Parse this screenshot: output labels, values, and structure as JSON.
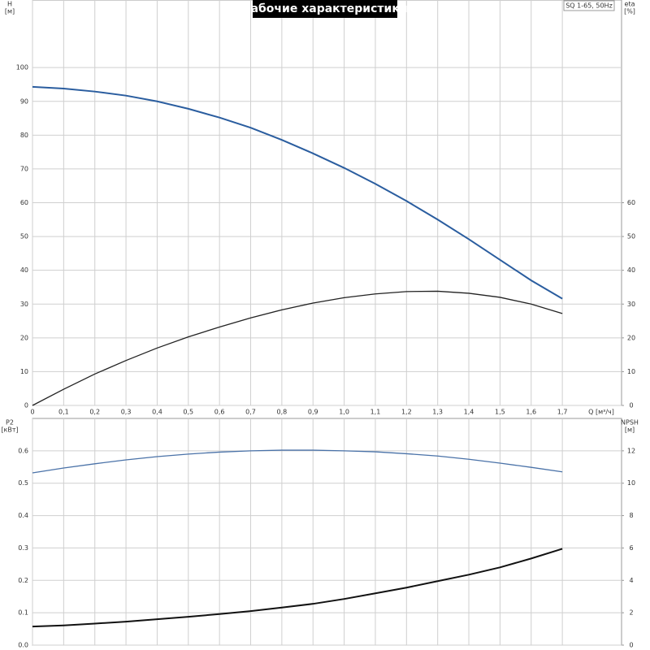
{
  "chart_data": [
    {
      "type": "line",
      "title": "Рабочие характеристики",
      "annotation": "SQ 1-65, 50Hz",
      "y_label": "H",
      "y_unit": "[м]",
      "y2_label": "eta",
      "y2_unit": "[%]",
      "x_label": "Q [м³/ч]",
      "xlim": [
        0,
        1.89
      ],
      "ylim": [
        0,
        120
      ],
      "y2lim": [
        0,
        120
      ],
      "grid": true,
      "xticks": [
        0,
        {
          "value": 0.1,
          "label": "0,1"
        },
        {
          "value": 0.2,
          "label": "0,2"
        },
        {
          "value": 0.3,
          "label": "0,3"
        },
        {
          "value": 0.4,
          "label": "0,4"
        },
        {
          "value": 0.5,
          "label": "0,5"
        },
        {
          "value": 0.6,
          "label": "0,6"
        },
        {
          "value": 0.7,
          "label": "0,7"
        },
        {
          "value": 0.8,
          "label": "0,8"
        },
        {
          "value": 0.9,
          "label": "0,9"
        },
        {
          "value": 1,
          "label": "1,0"
        },
        {
          "value": 1.1,
          "label": "1,1"
        },
        {
          "value": 1.2,
          "label": "1,2"
        },
        {
          "value": 1.3,
          "label": "1,3"
        },
        {
          "value": 1.4,
          "label": "1,4"
        },
        {
          "value": 1.5,
          "label": "1,5"
        },
        {
          "value": 1.6,
          "label": "1,6"
        },
        {
          "value": 1.7,
          "label": "1,7"
        }
      ],
      "yticks": [
        0,
        10,
        20,
        30,
        40,
        50,
        60,
        70,
        80,
        90,
        100
      ],
      "y2ticks": [
        0,
        10,
        20,
        30,
        40,
        50,
        60
      ],
      "x": [
        0,
        0.1,
        0.2,
        0.3,
        0.4,
        0.5,
        0.6,
        0.7,
        0.8,
        0.9,
        1.0,
        1.1,
        1.2,
        1.3,
        1.4,
        1.5,
        1.6,
        1.7
      ],
      "series": [
        {
          "name": "H",
          "color": "#2a5d9f",
          "width": 2,
          "values": [
            94.3,
            93.8,
            92.9,
            91.7,
            90,
            87.8,
            85.2,
            82.2,
            78.6,
            74.6,
            70.3,
            65.6,
            60.5,
            55,
            49.2,
            43.1,
            37,
            31.6
          ]
        },
        {
          "name": "eta",
          "axis": "y2",
          "color": "#222222",
          "width": 1.3,
          "values": [
            0,
            4.8,
            9.3,
            13.3,
            17,
            20.3,
            23.2,
            25.9,
            28.3,
            30.3,
            31.9,
            33,
            33.7,
            33.8,
            33.2,
            32,
            30,
            27.2
          ]
        }
      ]
    },
    {
      "type": "line",
      "y_label": "P2",
      "y_unit": "[кВт]",
      "y2_label": "NPSH",
      "y2_unit": "[м]",
      "xlim": [
        0,
        1.89
      ],
      "ylim": [
        0,
        0.7
      ],
      "y2lim": [
        0,
        14
      ],
      "grid": true,
      "yticks": [
        {
          "value": 0,
          "label": "0.0"
        },
        0.1,
        0.2,
        0.3,
        0.4,
        0.5,
        0.6
      ],
      "y2ticks": [
        0,
        2,
        4,
        6,
        8,
        10,
        12
      ],
      "x": [
        0,
        0.1,
        0.2,
        0.3,
        0.4,
        0.5,
        0.6,
        0.7,
        0.8,
        0.9,
        1.0,
        1.1,
        1.2,
        1.3,
        1.4,
        1.5,
        1.6,
        1.7
      ],
      "series": [
        {
          "name": "P2",
          "color": "#4a72a8",
          "width": 1.3,
          "values": [
            0.532,
            0.547,
            0.56,
            0.572,
            0.582,
            0.59,
            0.596,
            0.6,
            0.602,
            0.602,
            0.6,
            0.597,
            0.591,
            0.584,
            0.574,
            0.562,
            0.549,
            0.535
          ]
        },
        {
          "name": "NPSH",
          "axis": "y2",
          "color": "#111111",
          "width": 2,
          "values": [
            1.15,
            1.22,
            1.33,
            1.45,
            1.6,
            1.75,
            1.92,
            2.1,
            2.32,
            2.55,
            2.85,
            3.2,
            3.55,
            3.95,
            4.35,
            4.8,
            5.35,
            5.95
          ]
        }
      ]
    }
  ]
}
